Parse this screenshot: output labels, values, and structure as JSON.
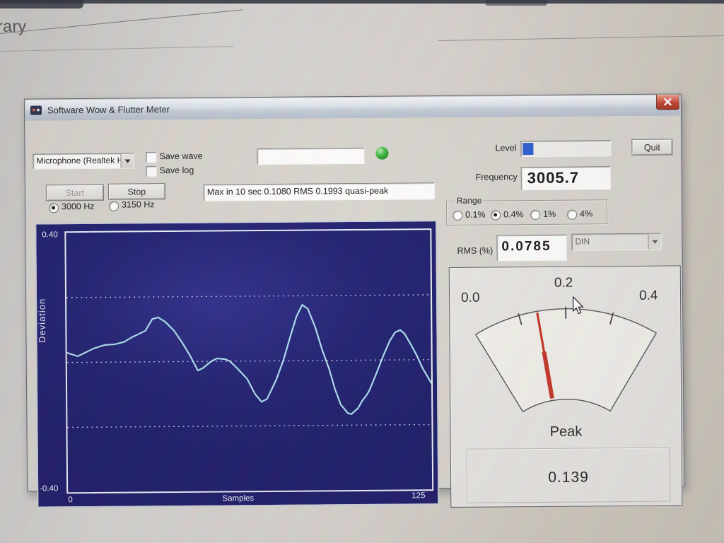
{
  "background": {
    "partial_text": "rary"
  },
  "window": {
    "title": "Software Wow & Flutter Meter"
  },
  "controls": {
    "input_device": {
      "value": "Microphone (Realtek Hi"
    },
    "save_wave": {
      "label": "Save wave",
      "checked": false
    },
    "save_log": {
      "label": "Save log",
      "checked": false
    },
    "filename_field": {
      "value": ""
    },
    "led_color": "#2fae2f",
    "level": {
      "label": "Level",
      "fill_percent": 12,
      "fill_color": "#2257ce"
    },
    "quit_label": "Quit",
    "start_label": "Start",
    "stop_label": "Stop",
    "freq_3000": {
      "label": "3000 Hz",
      "selected": true
    },
    "freq_3150": {
      "label": "3150 Hz",
      "selected": false
    },
    "status_text": "Max in 10 sec 0.1080 RMS 0.1993 quasi-peak",
    "frequency": {
      "label": "Frequency",
      "value": "3005.7"
    },
    "range": {
      "label": "Range",
      "options": [
        {
          "label": "0.1%",
          "selected": false
        },
        {
          "label": "0.4%",
          "selected": true
        },
        {
          "label": "1%",
          "selected": false
        },
        {
          "label": "4%",
          "selected": false
        }
      ]
    },
    "rms": {
      "label": "RMS (%)",
      "value": "0.0785"
    },
    "weighting": {
      "value": "DIN",
      "disabled": true
    }
  },
  "chart_data": {
    "type": "line",
    "title": "",
    "xlabel": "Samples",
    "ylabel": "Deviation",
    "xlim": [
      0,
      125
    ],
    "ylim": [
      -0.4,
      0.4
    ],
    "ytick_labels": [
      "0.40",
      "-0.40"
    ],
    "xtick_labels": [
      "0",
      "125"
    ],
    "gridlines_y": [
      0.2,
      0.0,
      -0.2
    ],
    "line_color": "#a9dceb",
    "grid_color": "#d9defc",
    "background": "#17166b",
    "series": [
      {
        "name": "deviation",
        "x": [
          0,
          3.7,
          9.3,
          13,
          16.4,
          19.6,
          22.5,
          24,
          27,
          29.4,
          31.4,
          33.8,
          36.8,
          39.7,
          42.2,
          44.9,
          46.6,
          49.5,
          51.5,
          54.4,
          55.9,
          58.3,
          61.8,
          64.5,
          66.7,
          68.6,
          71.8,
          74.3,
          76.7,
          78.9,
          80.9,
          82.8,
          85.3,
          87.7,
          90,
          91.9,
          93.9,
          96.3,
          97.5,
          99.8,
          101.2,
          102.9,
          103.7,
          106.1,
          108.6,
          110.8,
          112.7,
          114.5,
          115.9,
          118.1,
          120.1,
          122.1,
          124.3,
          125
        ],
        "y": [
          0.03,
          0.019,
          0.043,
          0.053,
          0.055,
          0.062,
          0.077,
          0.083,
          0.096,
          0.132,
          0.137,
          0.123,
          0.096,
          0.057,
          0.019,
          -0.028,
          -0.021,
          0.0,
          0.009,
          0.006,
          0.0,
          -0.021,
          -0.055,
          -0.102,
          -0.126,
          -0.117,
          -0.058,
          0.002,
          0.074,
          0.137,
          0.172,
          0.16,
          0.103,
          0.031,
          -0.027,
          -0.088,
          -0.137,
          -0.163,
          -0.166,
          -0.148,
          -0.126,
          -0.106,
          -0.094,
          -0.043,
          0.013,
          0.058,
          0.085,
          0.092,
          0.081,
          0.047,
          0.013,
          -0.027,
          -0.061,
          -0.072
        ]
      }
    ]
  },
  "meter": {
    "type": "gauge",
    "min": 0.0,
    "max": 0.4,
    "scale_labels": [
      "0.0",
      "0.2",
      "0.4"
    ],
    "ticks": [
      0.1,
      0.2,
      0.3
    ],
    "needle_value": 0.139,
    "needle_color": "#c22c1c",
    "peak_label": "Peak",
    "peak_value": "0.139"
  }
}
